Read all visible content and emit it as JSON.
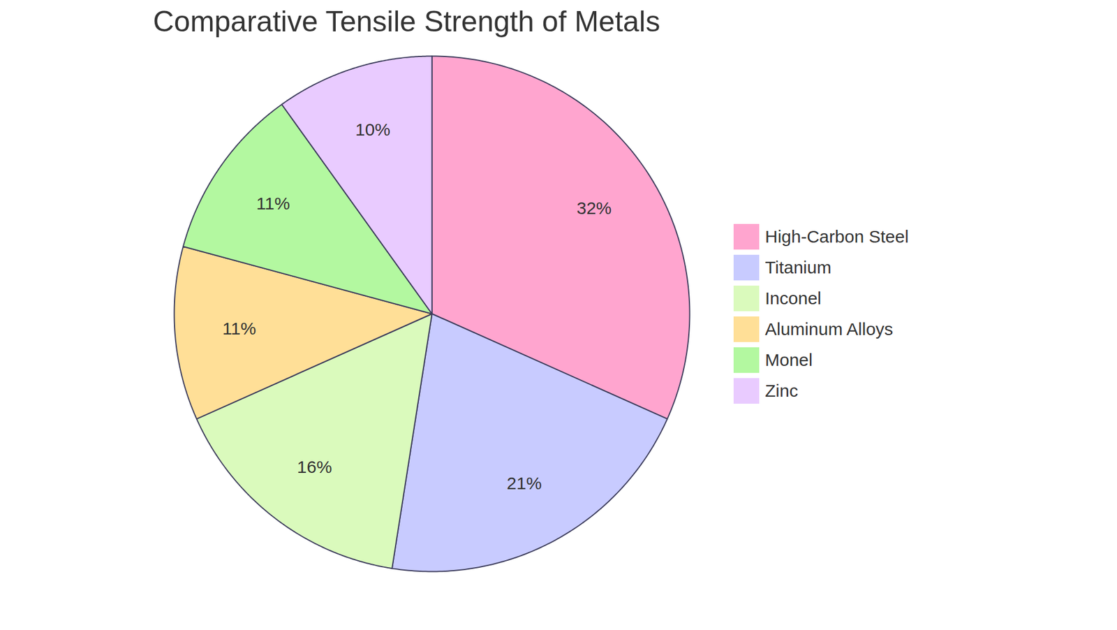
{
  "chart_data": {
    "type": "pie",
    "title": "Comparative Tensile Strength of Metals",
    "categories": [
      "High-Carbon Steel",
      "Titanium",
      "Inconel",
      "Aluminum Alloys",
      "Monel",
      "Zinc"
    ],
    "values": [
      32,
      21,
      16,
      11,
      11,
      10
    ],
    "value_labels": [
      "32%",
      "21%",
      "16%",
      "11%",
      "11%",
      "10%"
    ],
    "colors": [
      "#ffa5cf",
      "#c8cbff",
      "#dafabc",
      "#ffdf97",
      "#b3f8a0",
      "#e9cbff"
    ],
    "data_labels": true,
    "legend": "right"
  }
}
